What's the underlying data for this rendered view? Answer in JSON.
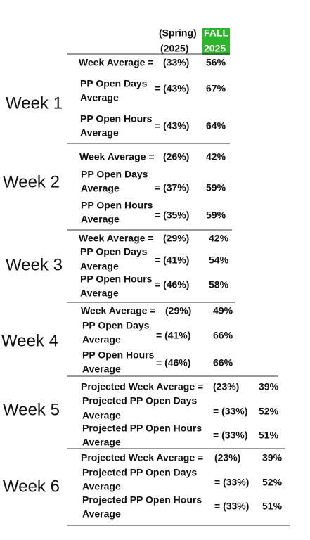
{
  "header": {
    "spring": [
      "(Spring)",
      "(2025)"
    ],
    "fall": [
      "FALL",
      "2025"
    ]
  },
  "weeks": [
    {
      "label": "Week 1",
      "rows": [
        {
          "metric": [
            "Week Average ="
          ],
          "spring": "(33%)",
          "fall": "56%"
        },
        {
          "metric": [
            "PP Open Days",
            "Average"
          ],
          "spring": "= (43%)",
          "fall": "67%"
        },
        {
          "metric": [
            "PP Open Hours",
            "Average"
          ],
          "spring": "= (43%)",
          "fall": "64%"
        }
      ]
    },
    {
      "label": "Week 2",
      "rows": [
        {
          "metric": [
            "Week Average ="
          ],
          "spring": "(26%)",
          "fall": "42%"
        },
        {
          "metric": [
            "PP Open Days",
            "Average"
          ],
          "spring": "= (37%)",
          "fall": "59%"
        },
        {
          "metric": [
            "PP Open Hours",
            "Average"
          ],
          "spring": "= (35%)",
          "fall": "59%"
        }
      ]
    },
    {
      "label": "Week 3",
      "rows": [
        {
          "metric": [
            "Week Average ="
          ],
          "spring": "(29%)",
          "fall": "42%"
        },
        {
          "metric": [
            "PP Open Days",
            "Average"
          ],
          "spring": "= (41%)",
          "fall": "54%"
        },
        {
          "metric": [
            "PP Open Hours",
            "Average"
          ],
          "spring": "= (46%)",
          "fall": "58%"
        }
      ]
    },
    {
      "label": "Week 4",
      "rows": [
        {
          "metric": [
            "Week Average ="
          ],
          "spring": "(29%)",
          "fall": "49%"
        },
        {
          "metric": [
            "PP Open Days",
            "Average"
          ],
          "spring": "= (41%)",
          "fall": "66%"
        },
        {
          "metric": [
            "PP Open Hours",
            "Average"
          ],
          "spring": "= (46%)",
          "fall": "66%"
        }
      ]
    },
    {
      "label": "Week 5",
      "rows": [
        {
          "metric": [
            "Projected Week Average ="
          ],
          "spring": "(23%)",
          "fall": "39%"
        },
        {
          "metric": [
            "Projected PP Open Days",
            "Average"
          ],
          "spring": "= (33%)",
          "fall": "52%"
        },
        {
          "metric": [
            "Projected PP Open Hours",
            "Average"
          ],
          "spring": "= (33%)",
          "fall": "51%"
        }
      ]
    },
    {
      "label": "Week 6",
      "rows": [
        {
          "metric": [
            "Projected Week Average ="
          ],
          "spring": "(23%)",
          "fall": "39%"
        },
        {
          "metric": [
            "Projected PP Open Days",
            "Average"
          ],
          "spring": "= (33%)",
          "fall": "52%"
        },
        {
          "metric": [
            "Projected PP Open Hours",
            "Average"
          ],
          "spring": "= (33%)",
          "fall": "51%"
        }
      ]
    }
  ]
}
